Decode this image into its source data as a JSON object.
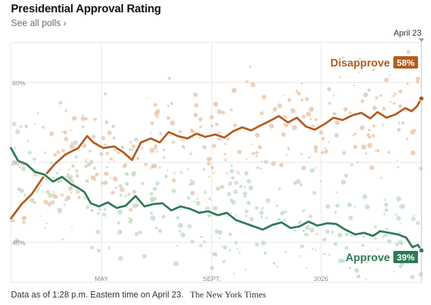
{
  "header": {
    "title": "Presidential Approval Rating",
    "polls_link": "See all polls ›"
  },
  "footer": {
    "as_of": "Data as of 1:28 p.m. Eastern time on April 23.",
    "credit": "The New York Times"
  },
  "colors": {
    "disapprove": "#b35c1e",
    "approve": "#2f7a55",
    "grid": "#e6e6e6",
    "dot_disapprove": "#e7c2a4",
    "dot_approve": "#bcd9c7"
  },
  "chart_data": {
    "type": "line",
    "title": "Presidential Approval Rating",
    "x_axis": {
      "range": [
        "2025-01-20",
        "2026-04-23"
      ],
      "ticks": [
        {
          "date": "2025-05-01",
          "label": "MAY"
        },
        {
          "date": "2025-09-01",
          "label": "SEPT."
        },
        {
          "date": "2026-01-01",
          "label": "2026"
        }
      ],
      "end_marker": {
        "date": "2026-04-23",
        "label": "April 23"
      }
    },
    "y_axis": {
      "range": [
        35,
        65
      ],
      "ticks": [
        {
          "value": 40,
          "label": "40%"
        },
        {
          "value": 50,
          "label": "50%"
        },
        {
          "value": 60,
          "label": "60%"
        }
      ],
      "grid": true
    },
    "series": [
      {
        "name": "Disapprove",
        "current_label": "58%",
        "points": [
          [
            "2025-01-20",
            43.0
          ],
          [
            "2025-02-01",
            44.8
          ],
          [
            "2025-02-12",
            46.0
          ],
          [
            "2025-02-24",
            48.0
          ],
          [
            "2025-03-10",
            49.8
          ],
          [
            "2025-03-22",
            51.0
          ],
          [
            "2025-04-05",
            51.8
          ],
          [
            "2025-04-15",
            53.3
          ],
          [
            "2025-04-22",
            52.5
          ],
          [
            "2025-05-03",
            51.8
          ],
          [
            "2025-05-15",
            52.0
          ],
          [
            "2025-05-25",
            51.3
          ],
          [
            "2025-06-04",
            50.3
          ],
          [
            "2025-06-14",
            52.5
          ],
          [
            "2025-06-25",
            53.0
          ],
          [
            "2025-07-05",
            52.5
          ],
          [
            "2025-07-15",
            53.8
          ],
          [
            "2025-07-25",
            53.3
          ],
          [
            "2025-08-05",
            53.0
          ],
          [
            "2025-08-15",
            53.6
          ],
          [
            "2025-08-25",
            53.2
          ],
          [
            "2025-09-05",
            53.5
          ],
          [
            "2025-09-15",
            53.1
          ],
          [
            "2025-09-25",
            53.9
          ],
          [
            "2025-10-05",
            54.4
          ],
          [
            "2025-10-15",
            54.0
          ],
          [
            "2025-10-25",
            54.6
          ],
          [
            "2025-11-05",
            55.2
          ],
          [
            "2025-11-15",
            55.8
          ],
          [
            "2025-11-25",
            55.0
          ],
          [
            "2025-12-05",
            55.6
          ],
          [
            "2025-12-15",
            54.5
          ],
          [
            "2025-12-25",
            54.1
          ],
          [
            "2026-01-05",
            54.8
          ],
          [
            "2026-01-15",
            55.6
          ],
          [
            "2026-01-25",
            55.3
          ],
          [
            "2026-02-05",
            55.9
          ],
          [
            "2026-02-15",
            56.2
          ],
          [
            "2026-02-25",
            55.5
          ],
          [
            "2026-03-05",
            56.3
          ],
          [
            "2026-03-15",
            55.6
          ],
          [
            "2026-03-25",
            56.0
          ],
          [
            "2026-04-05",
            56.8
          ],
          [
            "2026-04-12",
            56.4
          ],
          [
            "2026-04-18",
            57.0
          ],
          [
            "2026-04-23",
            58.0
          ]
        ]
      },
      {
        "name": "Approve",
        "current_label": "39%",
        "points": [
          [
            "2025-01-20",
            51.8
          ],
          [
            "2025-01-28",
            50.2
          ],
          [
            "2025-02-06",
            49.8
          ],
          [
            "2025-02-16",
            48.8
          ],
          [
            "2025-02-26",
            48.5
          ],
          [
            "2025-03-08",
            47.6
          ],
          [
            "2025-03-18",
            48.2
          ],
          [
            "2025-03-28",
            47.3
          ],
          [
            "2025-04-05",
            46.8
          ],
          [
            "2025-04-12",
            46.3
          ],
          [
            "2025-04-19",
            44.9
          ],
          [
            "2025-04-28",
            44.5
          ],
          [
            "2025-05-08",
            45.0
          ],
          [
            "2025-05-18",
            44.3
          ],
          [
            "2025-05-28",
            44.6
          ],
          [
            "2025-06-08",
            45.8
          ],
          [
            "2025-06-18",
            44.5
          ],
          [
            "2025-06-28",
            44.8
          ],
          [
            "2025-07-08",
            44.9
          ],
          [
            "2025-07-18",
            44.0
          ],
          [
            "2025-07-28",
            44.5
          ],
          [
            "2025-08-08",
            44.2
          ],
          [
            "2025-08-18",
            43.7
          ],
          [
            "2025-08-28",
            43.9
          ],
          [
            "2025-09-08",
            43.4
          ],
          [
            "2025-09-18",
            43.7
          ],
          [
            "2025-09-28",
            42.8
          ],
          [
            "2025-10-08",
            42.4
          ],
          [
            "2025-10-18",
            42.0
          ],
          [
            "2025-10-28",
            41.6
          ],
          [
            "2025-11-08",
            42.2
          ],
          [
            "2025-11-18",
            42.5
          ],
          [
            "2025-11-28",
            41.8
          ],
          [
            "2025-12-08",
            42.0
          ],
          [
            "2025-12-18",
            42.6
          ],
          [
            "2025-12-28",
            42.1
          ],
          [
            "2026-01-08",
            42.4
          ],
          [
            "2026-01-18",
            42.3
          ],
          [
            "2026-01-28",
            41.6
          ],
          [
            "2026-02-08",
            41.0
          ],
          [
            "2026-02-18",
            41.2
          ],
          [
            "2026-02-28",
            40.8
          ],
          [
            "2026-03-08",
            41.4
          ],
          [
            "2026-03-18",
            41.2
          ],
          [
            "2026-03-28",
            41.0
          ],
          [
            "2026-04-06",
            40.6
          ],
          [
            "2026-04-13",
            39.4
          ],
          [
            "2026-04-19",
            39.7
          ],
          [
            "2026-04-23",
            39.0
          ]
        ]
      }
    ]
  }
}
